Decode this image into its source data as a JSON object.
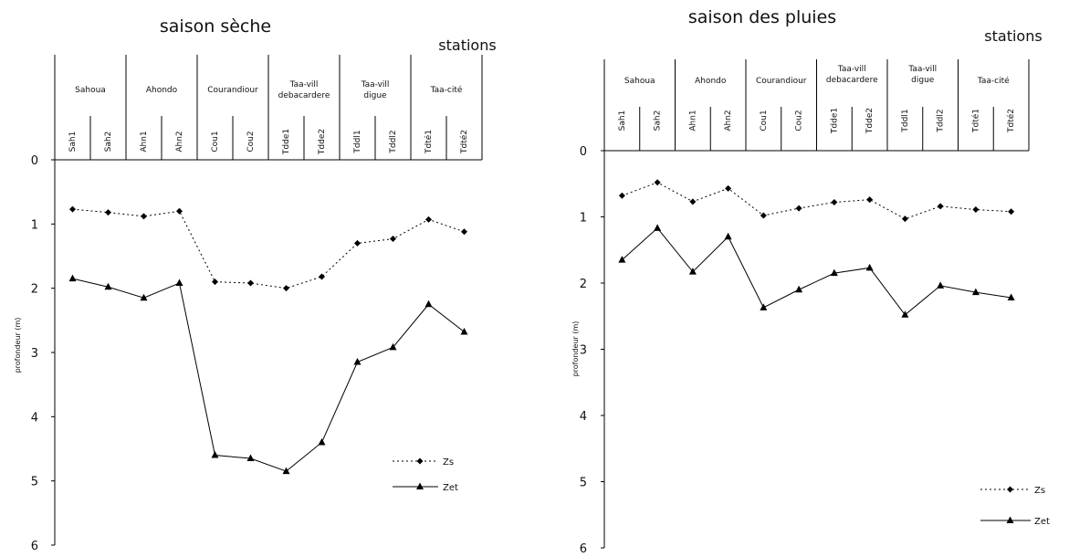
{
  "chart_data": [
    {
      "type": "line",
      "title": "saison sèche",
      "header_label": "stations",
      "ylabel": "profondeur (m)",
      "ylim": [
        0,
        6
      ],
      "y_ticks": [
        "0",
        "1",
        "2",
        "3",
        "4",
        "5",
        "6"
      ],
      "y_inverted": true,
      "groups": [
        {
          "lines": [
            "Sahoua"
          ],
          "stations": [
            "Sah1",
            "Sah2"
          ]
        },
        {
          "lines": [
            "Ahondo"
          ],
          "stations": [
            "Ahn1",
            "Ahn2"
          ]
        },
        {
          "lines": [
            "Courandiour"
          ],
          "stations": [
            "Cou1",
            "Cou2"
          ]
        },
        {
          "lines": [
            "Taa-vill",
            "debacardere"
          ],
          "stations": [
            "Tdde1",
            "Tdde2"
          ]
        },
        {
          "lines": [
            "Taa-vill",
            "digue"
          ],
          "stations": [
            "Tddl1",
            "Tddl2"
          ]
        },
        {
          "lines": [
            "Taa-cité"
          ],
          "stations": [
            "Tdté1",
            "Tdté2"
          ]
        }
      ],
      "categories": [
        "Sah1",
        "Sah2",
        "Ahn1",
        "Ahn2",
        "Cou1",
        "Cou2",
        "Tdde1",
        "Tdde2",
        "Tddl1",
        "Tddl2",
        "Tdté1",
        "Tdté2"
      ],
      "series": [
        {
          "name": "Zs",
          "style": "dotted",
          "marker": "diamond",
          "values": [
            0.77,
            0.82,
            0.88,
            0.8,
            1.9,
            1.92,
            2.0,
            1.82,
            1.3,
            1.23,
            0.93,
            1.12
          ]
        },
        {
          "name": "Zet",
          "style": "solid",
          "marker": "triangle",
          "values": [
            1.85,
            1.98,
            2.15,
            1.92,
            4.6,
            4.65,
            4.85,
            4.4,
            3.15,
            2.92,
            2.25,
            2.68
          ]
        }
      ],
      "legend_position": "bottom-right",
      "grid": false
    },
    {
      "type": "line",
      "title": "saison des pluies",
      "header_label": "stations",
      "ylabel": "profondeur (m)",
      "ylim": [
        0,
        6
      ],
      "y_ticks": [
        "0",
        "1",
        "2",
        "3",
        "4",
        "5",
        "6"
      ],
      "y_inverted": true,
      "groups": [
        {
          "lines": [
            "Sahoua"
          ],
          "stations": [
            "Sah1",
            "Sah2"
          ]
        },
        {
          "lines": [
            "Ahondo"
          ],
          "stations": [
            "Ahn1",
            "Ahn2"
          ]
        },
        {
          "lines": [
            "Courandiour"
          ],
          "stations": [
            "Cou1",
            "Cou2"
          ]
        },
        {
          "lines": [
            "Taa-vill",
            "debacardere"
          ],
          "stations": [
            "Tdde1",
            "Tdde2"
          ]
        },
        {
          "lines": [
            "Taa-vill",
            "digue"
          ],
          "stations": [
            "Tddl1",
            "Tddl2"
          ]
        },
        {
          "lines": [
            "Taa-cité"
          ],
          "stations": [
            "Tdté1",
            "Tdté2"
          ]
        }
      ],
      "categories": [
        "Sah1",
        "Sah2",
        "Ahn1",
        "Ahn2",
        "Cou1",
        "Cou2",
        "Tdde1",
        "Tdde2",
        "Tddl1",
        "Tddl2",
        "Tdté1",
        "Tdté2"
      ],
      "series": [
        {
          "name": "Zs",
          "style": "dotted",
          "marker": "diamond",
          "values": [
            0.68,
            0.48,
            0.77,
            0.57,
            0.98,
            0.87,
            0.78,
            0.74,
            1.03,
            0.84,
            0.89,
            0.92
          ]
        },
        {
          "name": "Zet",
          "style": "solid",
          "marker": "triangle",
          "values": [
            1.65,
            1.17,
            1.83,
            1.3,
            2.37,
            2.1,
            1.85,
            1.77,
            2.48,
            2.04,
            2.14,
            2.22
          ]
        }
      ],
      "legend_position": "bottom-right",
      "grid": false
    }
  ]
}
